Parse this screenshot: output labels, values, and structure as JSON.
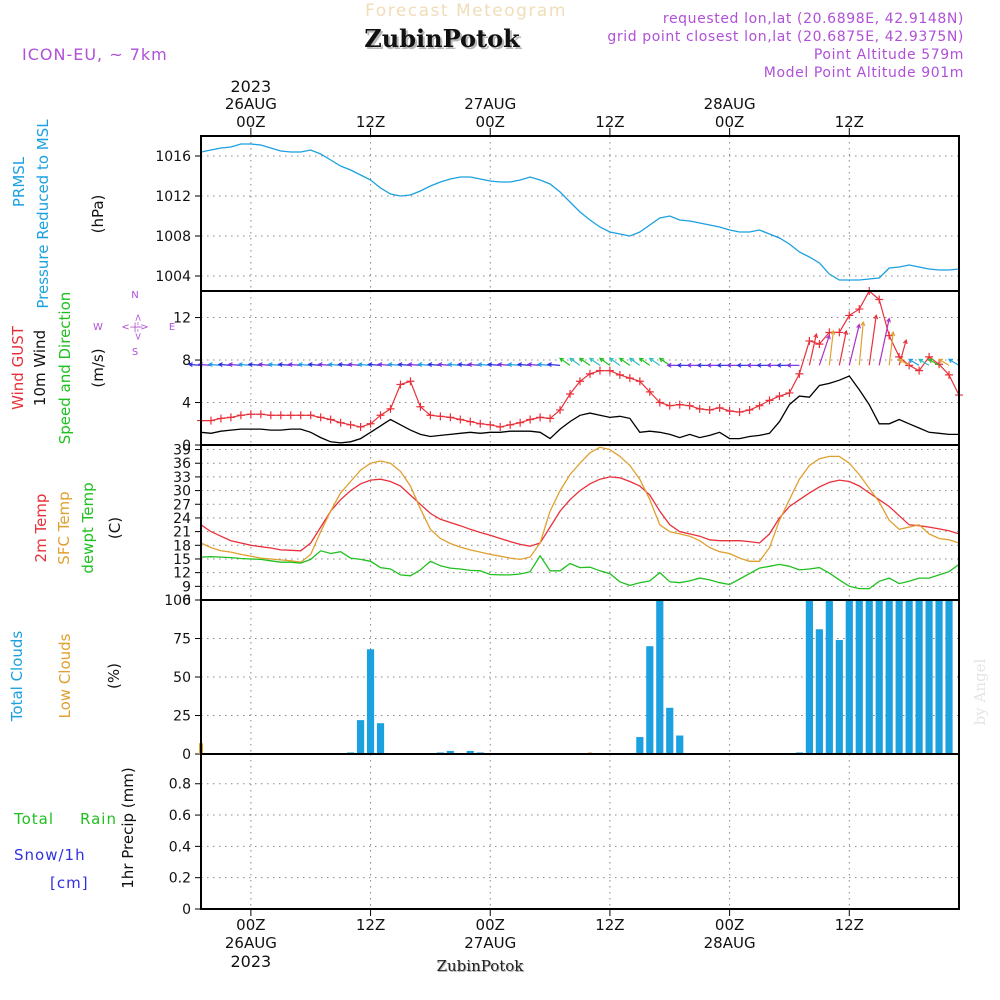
{
  "header": {
    "title_faded": "Forecast Meteogram",
    "location": "ZubinPotok",
    "model": "ICON-EU, ~ 7km",
    "requested": "requested lon,lat (20.6898E, 42.9148N)",
    "closest": "grid point closest lon,lat (20.6875E, 42.9375N)",
    "altitude": "Point Altitude 579m",
    "model_altitude": "Model Point Altitude 901m",
    "footer_location": "ZubinPotok",
    "watermark": "by Angel"
  },
  "time_axis": {
    "top_year": "2023",
    "day_labels": [
      "26AUG",
      "27AUG",
      "28AUG"
    ],
    "hour_labels": [
      "00Z",
      "12Z",
      "00Z",
      "12Z",
      "00Z",
      "12Z"
    ],
    "hour_values": [
      0,
      12,
      24,
      36,
      48,
      60
    ],
    "bottom_year": "2023",
    "x_range": [
      -5,
      71
    ]
  },
  "colors": {
    "pressure": "#1ba0e0",
    "gust": "#e8303a",
    "wind": "#000000",
    "temp2m": "#e8303a",
    "sfc": "#e0a030",
    "dewpt": "#20c020",
    "clouds_total": "#1ba0e0",
    "clouds_low": "#e0a030",
    "rain": "#20c020",
    "snow": "#3030e0",
    "purple": "#b050d8",
    "grid": "#888888"
  },
  "panels": {
    "pressure": {
      "labels": [
        "PRMSL",
        "Pressure Reduced to MSL",
        "(hPa)"
      ],
      "ticks": [
        "1016",
        "1012",
        "1008",
        "1004"
      ]
    },
    "wind": {
      "labels": [
        "Wind GUST",
        "10m Wind",
        "Speed and Direction",
        "(m/s)"
      ],
      "ticks": [
        "12",
        "8",
        "4",
        "0"
      ],
      "compass": {
        "n": "N",
        "s": "S",
        "w": "W",
        "e": "E",
        "arrow": "<-|->"
      }
    },
    "temp": {
      "labels": [
        "2m Temp",
        "SFC Temp",
        "dewpt Temp",
        "(C)"
      ],
      "ticks": [
        "39",
        "36",
        "33",
        "30",
        "27",
        "24",
        "21",
        "18",
        "15",
        "12",
        "9",
        "6"
      ]
    },
    "clouds": {
      "labels": [
        "Total Clouds",
        "Low Clouds",
        "(%)"
      ],
      "ticks": [
        "100",
        "75",
        "50",
        "25",
        "0"
      ]
    },
    "precip": {
      "labels": [
        "Total",
        "Rain",
        "Snow/1h",
        "[cm]",
        "1hr Precip (mm)"
      ],
      "ticks": [
        "0.8",
        "0.6",
        "0.4",
        "0.2",
        "0"
      ]
    }
  },
  "chart_data": [
    {
      "type": "line",
      "name": "pressure",
      "ylim": [
        1002.5,
        1018
      ],
      "x": [
        -5,
        -4,
        -3,
        -2,
        -1,
        0,
        1,
        2,
        3,
        4,
        5,
        6,
        7,
        8,
        9,
        10,
        11,
        12,
        13,
        14,
        15,
        16,
        17,
        18,
        19,
        20,
        21,
        22,
        23,
        24,
        25,
        26,
        27,
        28,
        29,
        30,
        31,
        32,
        33,
        34,
        35,
        36,
        37,
        38,
        39,
        40,
        41,
        42,
        43,
        44,
        45,
        46,
        47,
        48,
        49,
        50,
        51,
        52,
        53,
        54,
        55,
        56,
        57,
        58,
        59,
        60,
        61,
        62,
        63,
        64,
        65,
        66,
        67,
        68,
        69,
        70,
        71
      ],
      "series": [
        {
          "name": "PRMSL",
          "values": [
            1016.4,
            1016.6,
            1016.8,
            1016.9,
            1017.2,
            1017.2,
            1017.1,
            1016.8,
            1016.5,
            1016.4,
            1016.4,
            1016.6,
            1016.2,
            1015.6,
            1015.0,
            1014.6,
            1014.1,
            1013.6,
            1012.8,
            1012.2,
            1012.0,
            1012.1,
            1012.5,
            1013.0,
            1013.4,
            1013.7,
            1013.9,
            1013.9,
            1013.7,
            1013.5,
            1013.4,
            1013.4,
            1013.6,
            1013.9,
            1013.6,
            1013.2,
            1012.4,
            1011.4,
            1010.4,
            1009.6,
            1008.9,
            1008.4,
            1008.2,
            1008.0,
            1008.4,
            1009.1,
            1009.8,
            1010.0,
            1009.6,
            1009.5,
            1009.3,
            1009.1,
            1008.9,
            1008.6,
            1008.4,
            1008.4,
            1008.6,
            1008.2,
            1007.8,
            1007.2,
            1006.4,
            1005.9,
            1005.3,
            1004.2,
            1003.6,
            1003.6,
            1003.6,
            1003.7,
            1003.8,
            1004.8,
            1004.9,
            1005.1,
            1004.9,
            1004.7,
            1004.6,
            1004.6,
            1004.7
          ]
        }
      ]
    },
    {
      "type": "line",
      "name": "wind",
      "ylim": [
        0,
        14.5
      ],
      "x": [
        -5,
        -4,
        -3,
        -2,
        -1,
        0,
        1,
        2,
        3,
        4,
        5,
        6,
        7,
        8,
        9,
        10,
        11,
        12,
        13,
        14,
        15,
        16,
        17,
        18,
        19,
        20,
        21,
        22,
        23,
        24,
        25,
        26,
        27,
        28,
        29,
        30,
        31,
        32,
        33,
        34,
        35,
        36,
        37,
        38,
        39,
        40,
        41,
        42,
        43,
        44,
        45,
        46,
        47,
        48,
        49,
        50,
        51,
        52,
        53,
        54,
        55,
        56,
        57,
        58,
        59,
        60,
        61,
        62,
        63,
        64,
        65,
        66,
        67,
        68,
        69,
        70,
        71
      ],
      "series": [
        {
          "name": "Wind GUST",
          "values": [
            2.3,
            2.3,
            2.5,
            2.6,
            2.8,
            2.9,
            2.9,
            2.8,
            2.8,
            2.8,
            2.8,
            2.8,
            2.6,
            2.4,
            2.1,
            1.9,
            1.7,
            2.0,
            2.8,
            3.4,
            5.7,
            6.0,
            3.6,
            2.8,
            2.7,
            2.6,
            2.4,
            2.2,
            2.0,
            1.9,
            1.7,
            1.9,
            2.1,
            2.4,
            2.6,
            2.5,
            3.3,
            4.8,
            6.0,
            6.7,
            7.0,
            7.0,
            6.6,
            6.3,
            6.0,
            5.0,
            4.0,
            3.7,
            3.8,
            3.7,
            3.4,
            3.3,
            3.5,
            3.2,
            3.1,
            3.3,
            3.7,
            4.2,
            4.6,
            4.9,
            6.7,
            9.8,
            9.5,
            10.6,
            10.6,
            12.2,
            12.8,
            14.5,
            13.7,
            10.3,
            8.3,
            7.5,
            7.0,
            8.3,
            7.6,
            6.6,
            4.7
          ]
        },
        {
          "name": "10m Wind",
          "values": [
            1.2,
            1.1,
            1.3,
            1.4,
            1.5,
            1.5,
            1.5,
            1.4,
            1.4,
            1.5,
            1.5,
            1.2,
            0.7,
            0.3,
            0.2,
            0.3,
            0.6,
            1.2,
            1.8,
            2.4,
            1.9,
            1.4,
            1.0,
            0.8,
            0.9,
            1.0,
            1.1,
            1.2,
            1.1,
            1.2,
            1.2,
            1.3,
            1.3,
            1.3,
            1.2,
            0.6,
            1.5,
            2.2,
            2.8,
            3.0,
            2.8,
            2.6,
            2.7,
            2.5,
            1.2,
            1.3,
            1.2,
            1.0,
            0.7,
            1.0,
            0.7,
            0.9,
            1.2,
            0.6,
            0.6,
            0.8,
            0.9,
            1.1,
            2.2,
            3.8,
            4.6,
            4.5,
            5.6,
            5.8,
            6.1,
            6.5,
            5.2,
            3.8,
            2.0,
            2.0,
            2.4,
            2.0,
            1.6,
            1.2,
            1.1,
            1.0,
            1.0
          ]
        }
      ]
    },
    {
      "type": "line",
      "name": "temperature",
      "ylim": [
        6,
        40
      ],
      "x": [
        -5,
        -4,
        -3,
        -2,
        -1,
        0,
        1,
        2,
        3,
        4,
        5,
        6,
        7,
        8,
        9,
        10,
        11,
        12,
        13,
        14,
        15,
        16,
        17,
        18,
        19,
        20,
        21,
        22,
        23,
        24,
        25,
        26,
        27,
        28,
        29,
        30,
        31,
        32,
        33,
        34,
        35,
        36,
        37,
        38,
        39,
        40,
        41,
        42,
        43,
        44,
        45,
        46,
        47,
        48,
        49,
        50,
        51,
        52,
        53,
        54,
        55,
        56,
        57,
        58,
        59,
        60,
        61,
        62,
        63,
        64,
        65,
        66,
        67,
        68,
        69,
        70,
        71
      ],
      "series": [
        {
          "name": "2m Temp",
          "values": [
            22.5,
            21,
            20,
            19,
            18.5,
            18,
            17.7,
            17.4,
            17,
            16.9,
            16.8,
            18.5,
            22,
            25.5,
            28,
            30,
            31.5,
            32.3,
            32.5,
            32,
            31,
            29,
            27,
            25,
            23.7,
            23,
            22.3,
            21.5,
            20.8,
            20.2,
            19.5,
            18.8,
            18.2,
            17.8,
            18.5,
            22,
            25.5,
            28,
            30,
            31.5,
            32.5,
            33,
            32.8,
            32,
            31,
            29,
            25.5,
            22.5,
            21,
            20.5,
            20,
            19.2,
            19,
            19,
            19,
            18.8,
            18.5,
            20.5,
            24,
            26.5,
            28,
            29.5,
            30.8,
            31.8,
            32.3,
            32,
            31,
            29.5,
            28,
            26.5,
            24.5,
            22.5,
            22.3,
            22.0,
            21.6,
            21.2,
            20.5
          ]
        },
        {
          "name": "SFC Temp",
          "values": [
            18.5,
            17.5,
            16.8,
            16.5,
            16,
            15.6,
            15.2,
            15,
            14.8,
            14.6,
            14.3,
            16,
            21,
            25.5,
            29.5,
            32,
            34.5,
            36,
            36.5,
            36,
            34.2,
            31,
            26,
            21.5,
            19.5,
            18.4,
            17.6,
            17,
            16.5,
            16,
            15.6,
            15.2,
            14.9,
            15.4,
            18.5,
            25.5,
            30,
            33.5,
            36,
            38.3,
            39.5,
            39,
            37.5,
            35.5,
            32.5,
            28,
            22.5,
            21,
            20.5,
            20,
            19,
            17.5,
            16.6,
            16.2,
            15.2,
            14.5,
            14.5,
            17.5,
            23.5,
            28,
            32.5,
            35.5,
            37,
            37.5,
            37.5,
            36,
            33.5,
            30.5,
            27.5,
            23.5,
            21.5,
            22,
            22.5,
            20.5,
            19.5,
            19.2,
            18.5
          ]
        },
        {
          "name": "dewpt Temp",
          "values": [
            15.4,
            15.5,
            15.4,
            15.3,
            15.1,
            15.0,
            14.9,
            14.6,
            14.3,
            14.3,
            14.1,
            14.9,
            16.8,
            16.2,
            16.6,
            15.2,
            14.9,
            14.5,
            13.1,
            12.8,
            11.5,
            11.3,
            12.6,
            14.5,
            13.5,
            13.0,
            12.8,
            12.5,
            12.4,
            11.6,
            11.5,
            11.5,
            11.7,
            12.2,
            15.7,
            12.4,
            12.4,
            14.0,
            13.1,
            13.2,
            12.4,
            11.8,
            10.0,
            9.2,
            9.8,
            10.2,
            12.0,
            10.0,
            9.8,
            10.2,
            10.8,
            10.4,
            9.8,
            9.4,
            10.6,
            11.8,
            13.0,
            13.4,
            13.8,
            13.4,
            12.6,
            12.8,
            13.1,
            11.9,
            10.4,
            9.0,
            8.5,
            8.5,
            10.1,
            10.8,
            9.6,
            10.1,
            10.8,
            10.8,
            11.5,
            12.2,
            13.8
          ]
        }
      ]
    },
    {
      "type": "bar",
      "name": "clouds",
      "ylim": [
        0,
        100
      ],
      "series": [
        {
          "name": "Total Clouds",
          "x": [
            10,
            11,
            12,
            13,
            19,
            20,
            22,
            23,
            39,
            40,
            41,
            42,
            43,
            55,
            56,
            57,
            58,
            59,
            60,
            61,
            62,
            63,
            64,
            65,
            66,
            67,
            68,
            69,
            70
          ],
          "values": [
            1,
            22,
            68,
            20,
            1,
            2,
            2,
            1,
            11,
            70,
            100,
            30,
            12,
            1,
            100,
            81,
            100,
            74,
            100,
            100,
            100,
            100,
            100,
            100,
            100,
            100,
            100,
            100,
            100
          ]
        },
        {
          "name": "Low Clouds",
          "x": [
            -5,
            10,
            11,
            34
          ],
          "values": [
            7,
            1,
            1,
            1
          ]
        }
      ]
    },
    {
      "type": "line",
      "name": "precipitation",
      "ylim": [
        0,
        0.99
      ],
      "series": [
        {
          "name": "Total",
          "values": []
        },
        {
          "name": "Rain",
          "values": []
        },
        {
          "name": "Snow/1h",
          "values": []
        }
      ]
    }
  ]
}
